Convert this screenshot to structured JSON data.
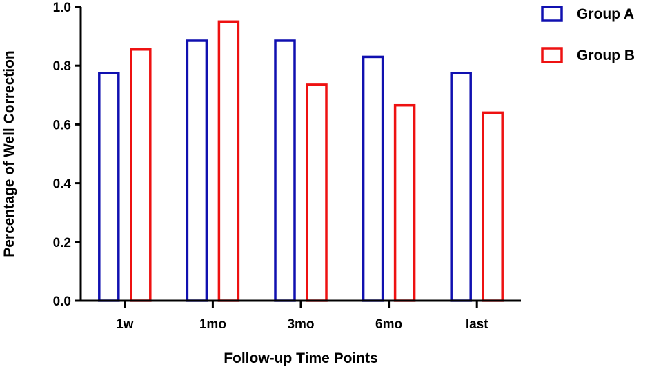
{
  "chart_data": {
    "type": "bar",
    "title": "",
    "xlabel": "Follow-up Time Points",
    "ylabel": "Percentage of Well Correction",
    "categories": [
      "1w",
      "1mo",
      "3mo",
      "6mo",
      "last"
    ],
    "ylim": [
      0,
      1.0
    ],
    "yticks": [
      "0.0",
      "0.2",
      "0.4",
      "0.6",
      "0.8",
      "1.0"
    ],
    "grid": false,
    "legend_position": "top-right",
    "series": [
      {
        "name": "Group A",
        "color": "#1010b0",
        "values": [
          0.775,
          0.885,
          0.885,
          0.83,
          0.775
        ]
      },
      {
        "name": "Group B",
        "color": "#ee1111",
        "values": [
          0.855,
          0.95,
          0.735,
          0.665,
          0.64
        ]
      }
    ]
  }
}
